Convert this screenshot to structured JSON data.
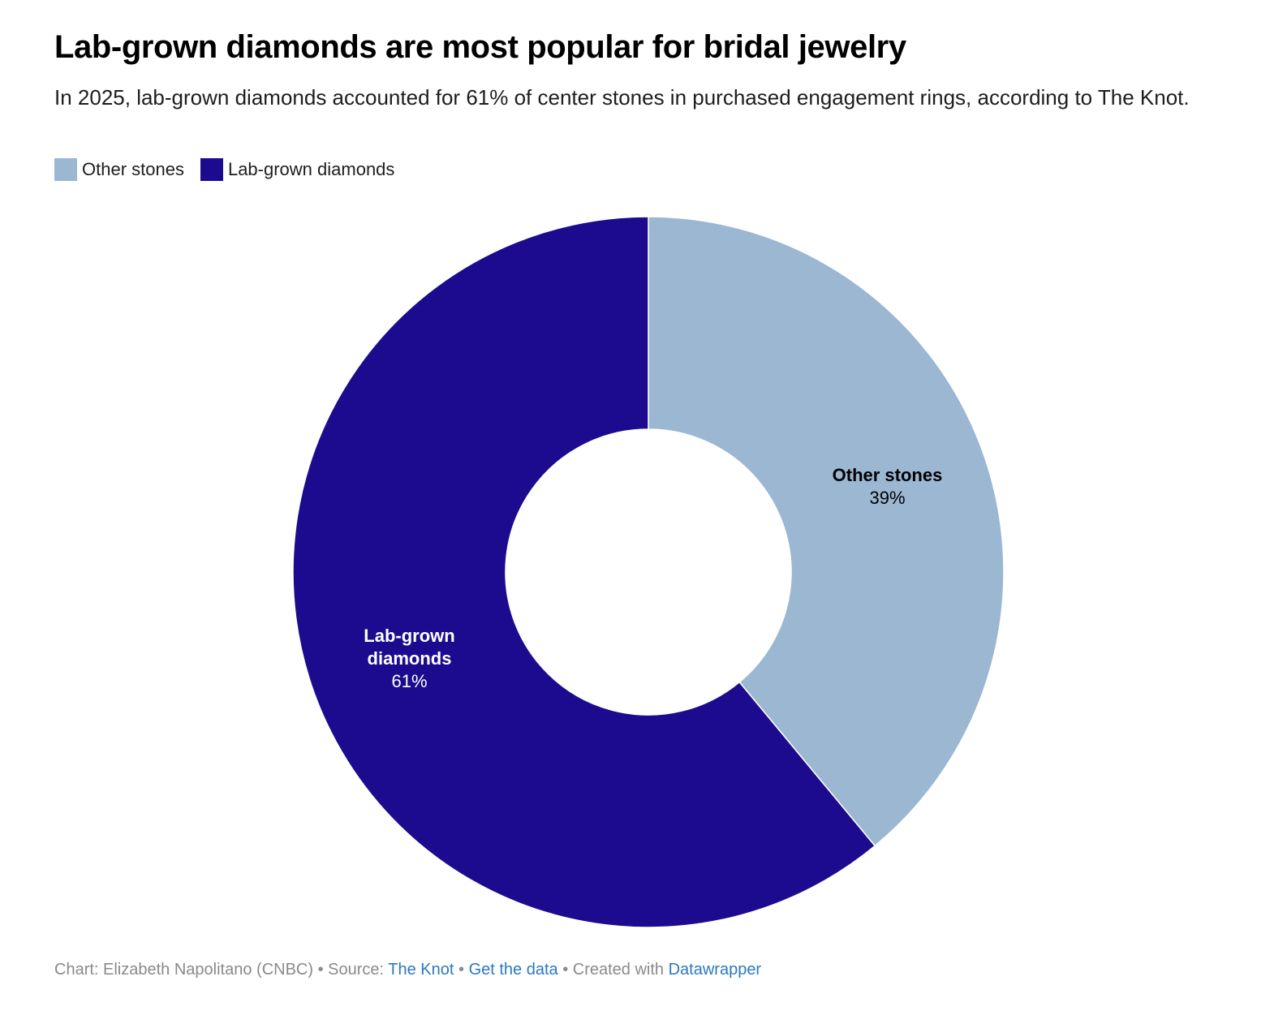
{
  "chart_data": {
    "type": "pie",
    "donut": true,
    "title": "Lab-grown diamonds are most popular for bridal jewelry",
    "subtitle": "In 2025, lab-grown diamonds accounted for 61% of center stones in purchased engagement rings, according to The Knot.",
    "legend_position": "top-left",
    "unit": "%",
    "slices": [
      {
        "name": "Other stones",
        "value": 39,
        "label": "39%",
        "color": "#9bb7d2",
        "label_color": "#000000"
      },
      {
        "name": "Lab-grown diamonds",
        "value": 61,
        "label": "61%",
        "color": "#1c0b8e",
        "label_color": "#ffffff"
      }
    ]
  },
  "legend": [
    {
      "label": "Other stones",
      "color": "#9bb7d2"
    },
    {
      "label": "Lab-grown diamonds",
      "color": "#1c0b8e"
    }
  ],
  "footer": {
    "prefix": "Chart: Elizabeth Napolitano (CNBC) • Source: ",
    "source_link": "The Knot",
    "sep1": " • ",
    "data_link": "Get the data",
    "sep2": " • Created with ",
    "tool_link": "Datawrapper"
  }
}
